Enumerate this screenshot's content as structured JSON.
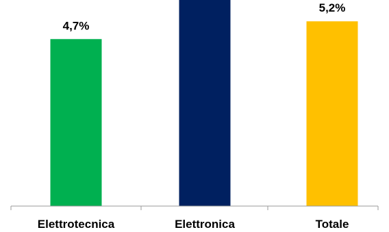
{
  "chart_data": {
    "type": "bar",
    "title": "",
    "xlabel": "",
    "ylabel": "",
    "categories": [
      "Elettrotecnica",
      "Elettronica",
      "Totale"
    ],
    "values": [
      4.7,
      6.0,
      5.2
    ],
    "data_labels": [
      "4,7%",
      "",
      "5,2%"
    ],
    "colors": [
      "#00B050",
      "#002060",
      "#FFC000"
    ],
    "ylim": [
      0,
      5.8
    ],
    "grid": false,
    "legend": "none"
  }
}
